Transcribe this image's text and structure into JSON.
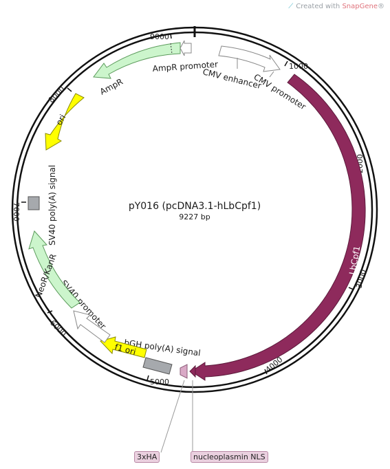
{
  "credit": {
    "prefix": "Created with ",
    "brand": "SnapGene",
    "suffix": "®"
  },
  "plasmid": {
    "name": "pY016 (pcDNA3.1-hLbCpf1)",
    "length_label": "9227 bp"
  },
  "ticks": [
    "1000",
    "2000",
    "3000",
    "4000",
    "5000",
    "6000",
    "7000",
    "8000",
    "9000"
  ],
  "features": {
    "cmv_enhancer": "CMV enhancer",
    "cmv_promoter": "CMV promoter",
    "lbcpf1": "LbCpf1",
    "bgh": "bGH poly(A) signal",
    "f1_ori": "f1 ori",
    "sv40_promoter": "SV40 promoter",
    "neo": "NeoR/KanR",
    "sv40_polya": "SV40 poly(A) signal",
    "ori": "ori",
    "ampr": "AmpR",
    "ampr_promoter": "AmpR promoter"
  },
  "callouts": {
    "tag_3xha": "3xHA",
    "nls": "nucleoplasmin NLS"
  },
  "colors": {
    "lbcpf1": "#8e2a5c",
    "ampr": "#ccf5cc",
    "neo": "#ccf5cc",
    "ori": "#ffff00",
    "f1_ori": "#ffff00",
    "polya": "#a6a9ad",
    "promoter": "#ffffff",
    "tag": "#d9a9c6"
  }
}
